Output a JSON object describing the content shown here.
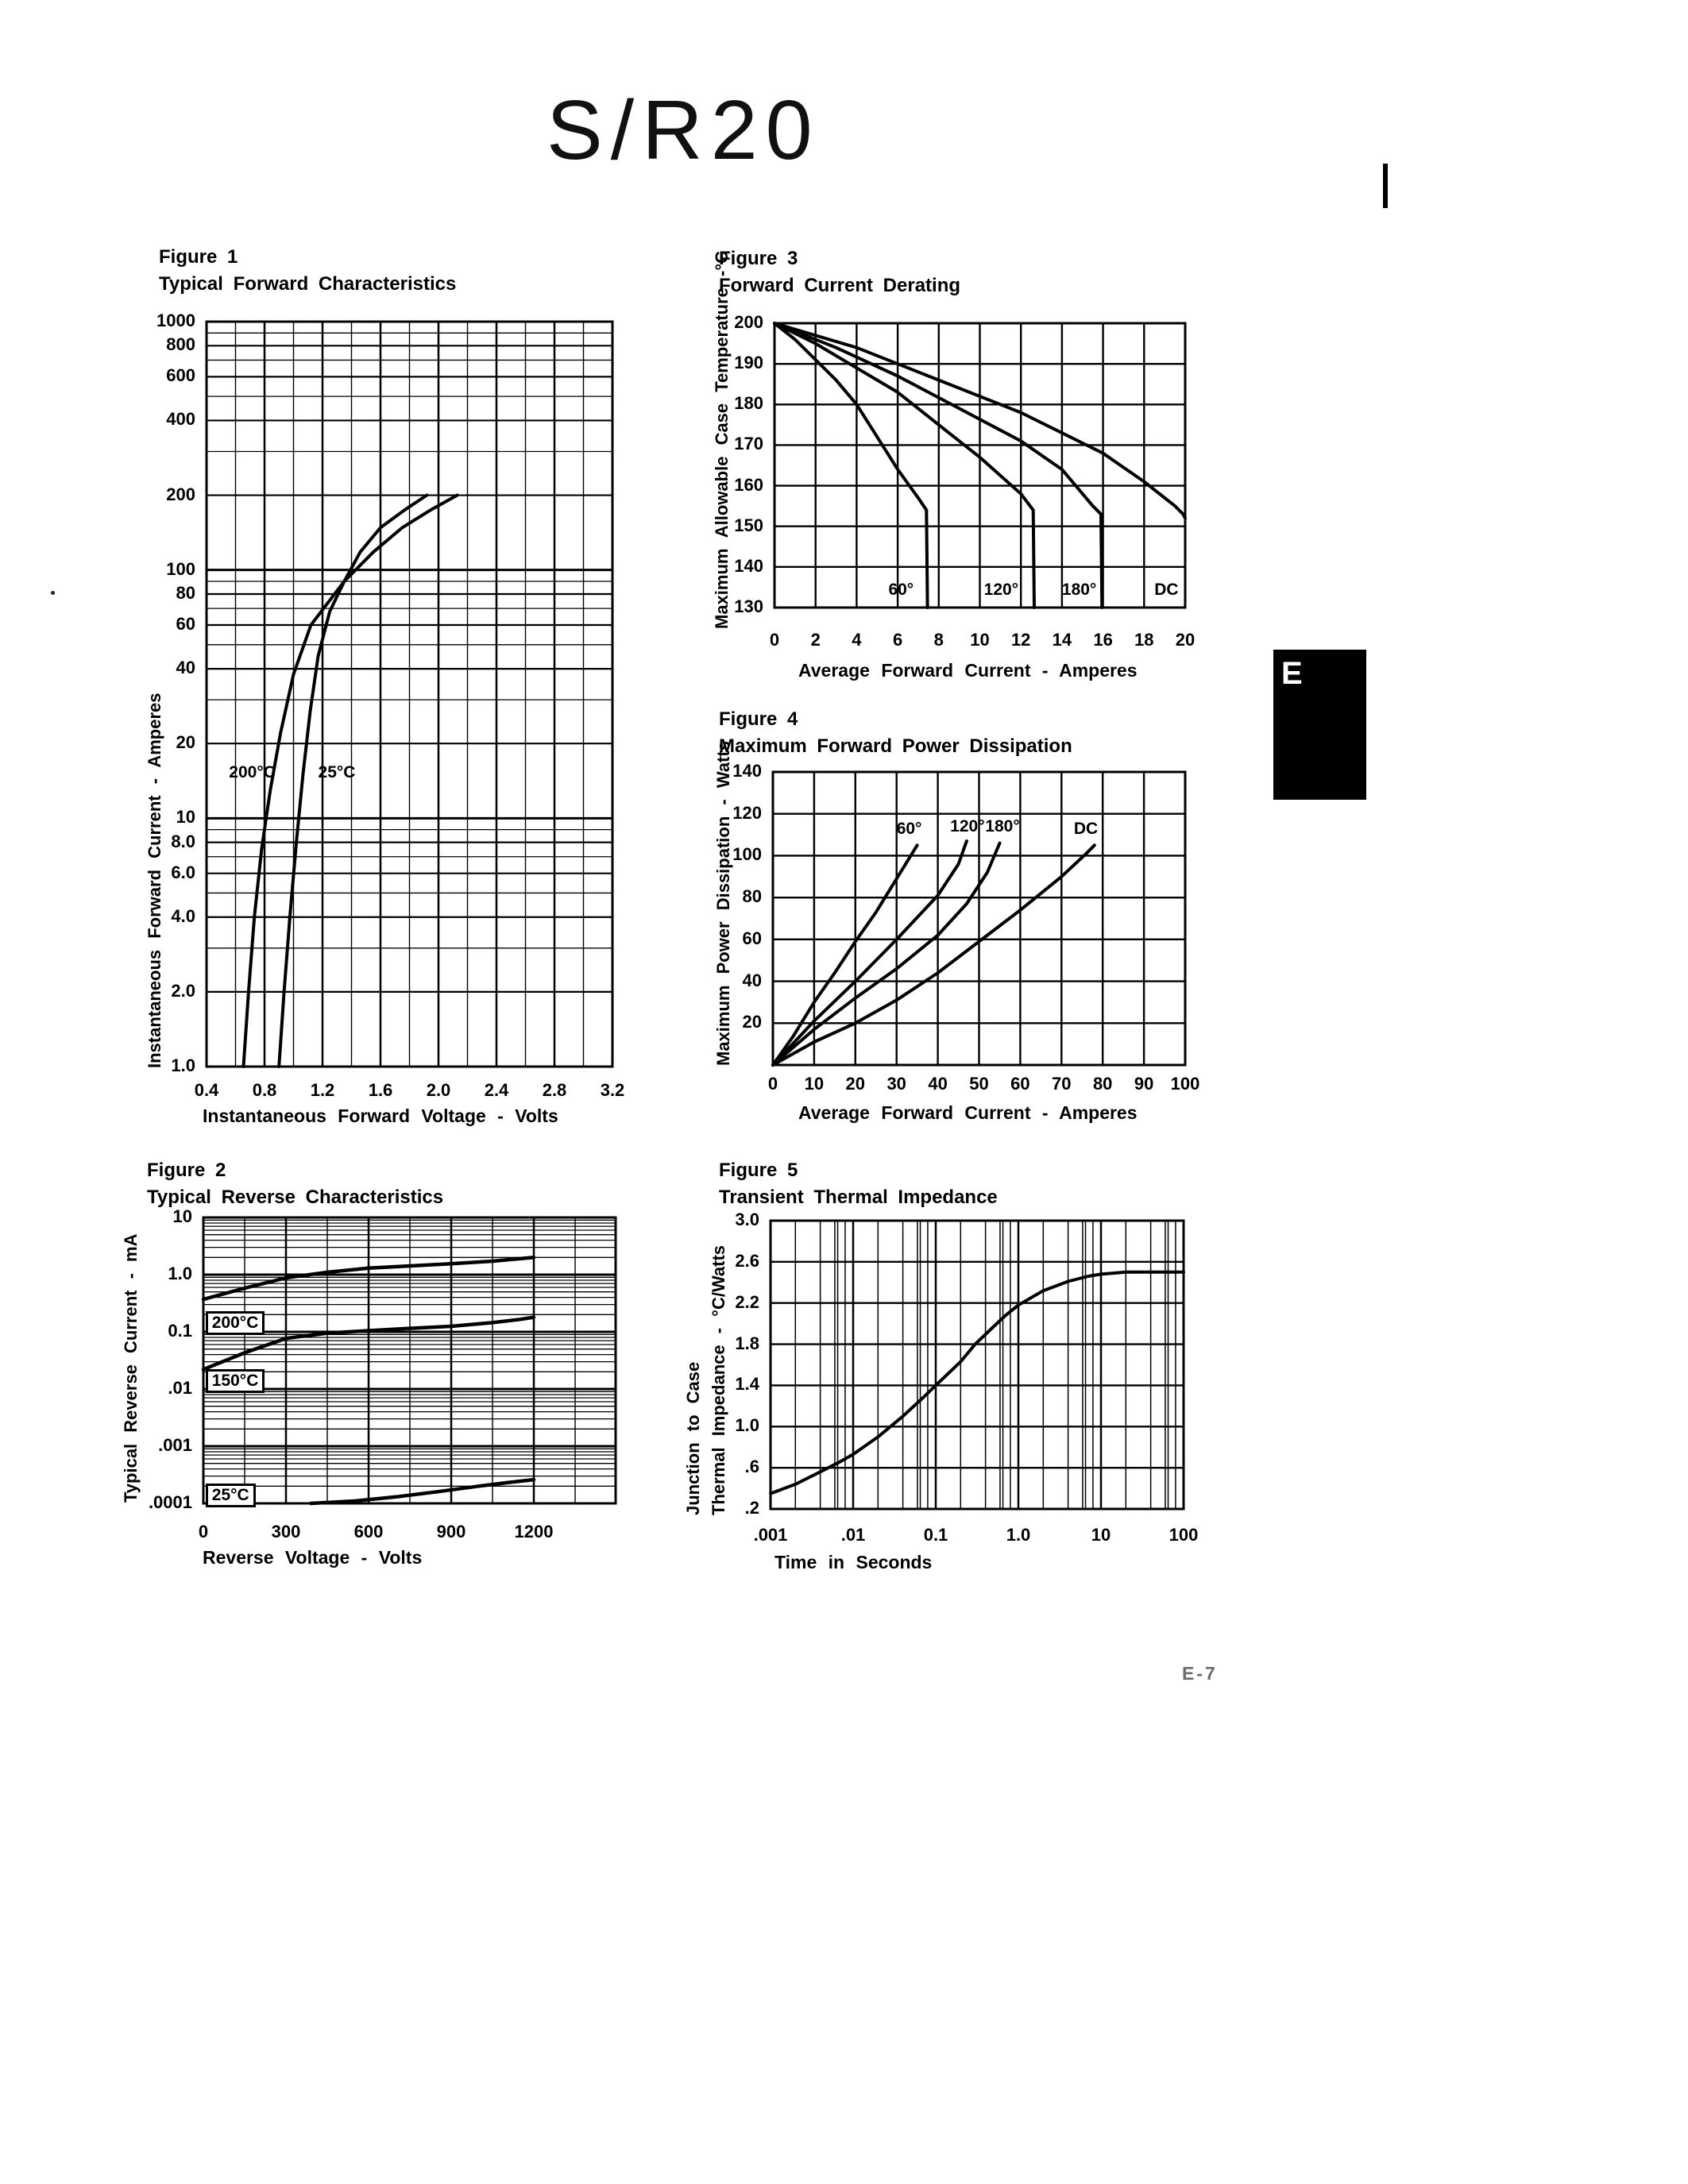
{
  "page": {
    "title": "S/R20",
    "section_tab": "E",
    "page_number": "E-7",
    "ink_color": "#000000",
    "background": "#ffffff"
  },
  "chart_data": [
    {
      "figure_label": "Figure 1",
      "title": "Typical Forward Characteristics",
      "type": "line",
      "xlabel": "Instantaneous Forward Voltage - Volts",
      "ylabel": "Instantaneous Forward Current - Amperes",
      "x_scale": "linear",
      "y_scale": "log",
      "xlim": [
        0.4,
        3.2
      ],
      "ylim": [
        1,
        1000
      ],
      "grid": "on",
      "x_ticks": {
        "values": [
          0.4,
          0.8,
          1.2,
          1.6,
          2.0,
          2.4,
          2.8,
          3.2
        ],
        "labels": [
          "0.4",
          "0.8",
          "1.2",
          "1.6",
          "2.0",
          "2.4",
          "2.8",
          "3.2"
        ]
      },
      "y_ticks": {
        "values": [
          1000,
          800,
          600,
          400,
          200,
          100,
          80,
          60,
          40,
          20,
          10,
          8,
          6,
          4,
          2,
          1
        ],
        "labels": [
          "1000",
          "800",
          "600",
          "400",
          "200",
          "100",
          "80",
          "60",
          "40",
          "20",
          "10",
          "8.0",
          "6.0",
          "4.0",
          "2.0",
          "1.0"
        ]
      },
      "series": [
        {
          "name": "200°C",
          "points": [
            [
              0.655,
              1
            ],
            [
              0.69,
              2
            ],
            [
              0.73,
              4
            ],
            [
              0.78,
              7.5
            ],
            [
              0.84,
              13
            ],
            [
              0.91,
              22
            ],
            [
              1.0,
              38
            ],
            [
              1.12,
              60
            ],
            [
              1.35,
              90
            ],
            [
              1.55,
              118
            ],
            [
              1.75,
              148
            ],
            [
              1.95,
              175
            ],
            [
              2.13,
              200
            ]
          ]
        },
        {
          "name": "25°C",
          "points": [
            [
              0.9,
              1
            ],
            [
              0.935,
              2
            ],
            [
              0.975,
              4
            ],
            [
              1.02,
              8
            ],
            [
              1.065,
              15
            ],
            [
              1.115,
              27
            ],
            [
              1.17,
              45
            ],
            [
              1.25,
              68
            ],
            [
              1.35,
              90
            ],
            [
              1.46,
              118
            ],
            [
              1.6,
              148
            ],
            [
              1.77,
              175
            ],
            [
              1.92,
              200
            ]
          ]
        }
      ],
      "annotations": [
        {
          "text": "200°C",
          "x": 0.555,
          "y": 15,
          "boxed": false
        },
        {
          "text": "25°C",
          "x": 1.17,
          "y": 15,
          "boxed": false
        }
      ]
    },
    {
      "figure_label": "Figure 2",
      "title": "Typical Reverse Characteristics",
      "type": "line",
      "xlabel": "Reverse Voltage - Volts",
      "ylabel": "Typical Reverse Current - mA",
      "x_scale": "linear",
      "y_scale": "log",
      "xlim": [
        0,
        1497
      ],
      "ylim": [
        0.0001,
        10
      ],
      "grid": "on",
      "x_ticks": {
        "values": [
          0,
          300,
          600,
          900,
          1200
        ],
        "labels": [
          "0",
          "300",
          "600",
          "900",
          "1200"
        ]
      },
      "y_ticks": {
        "values": [
          10,
          1,
          0.1,
          0.01,
          0.001,
          0.0001
        ],
        "labels": [
          "10",
          "1.0",
          "0.1",
          ".01",
          ".001",
          ".0001"
        ]
      },
      "series": [
        {
          "name": "200°C",
          "points": [
            [
              0,
              0.37
            ],
            [
              150,
              0.58
            ],
            [
              300,
              0.88
            ],
            [
              450,
              1.1
            ],
            [
              600,
              1.3
            ],
            [
              750,
              1.42
            ],
            [
              900,
              1.55
            ],
            [
              1050,
              1.72
            ],
            [
              1150,
              1.9
            ],
            [
              1200,
              2.0
            ]
          ]
        },
        {
          "name": "150°C",
          "points": [
            [
              0,
              0.022
            ],
            [
              150,
              0.043
            ],
            [
              300,
              0.077
            ],
            [
              450,
              0.095
            ],
            [
              600,
              0.105
            ],
            [
              750,
              0.115
            ],
            [
              900,
              0.125
            ],
            [
              1050,
              0.145
            ],
            [
              1150,
              0.165
            ],
            [
              1200,
              0.18
            ]
          ]
        },
        {
          "name": "25°C",
          "points": [
            [
              390,
              0.0001
            ],
            [
              550,
              0.00011
            ],
            [
              700,
              0.00013
            ],
            [
              850,
              0.00016
            ],
            [
              1000,
              0.0002
            ],
            [
              1100,
              0.00023
            ],
            [
              1200,
              0.00026
            ]
          ]
        }
      ],
      "annotations": [
        {
          "text": "200°C",
          "x": 8,
          "y": 0.145,
          "boxed": true
        },
        {
          "text": "150°C",
          "x": 8,
          "y": 0.0143,
          "boxed": true
        },
        {
          "text": "25°C",
          "x": 8,
          "y": 0.000143,
          "boxed": true
        }
      ]
    },
    {
      "figure_label": "Figure 3",
      "title": "Forward Current Derating",
      "type": "line",
      "xlabel": "Average Forward Current - Amperes",
      "ylabel": "Maximum Allowable Case Temperature -°C",
      "x_scale": "linear",
      "y_scale": "linear",
      "xlim": [
        0,
        20
      ],
      "ylim": [
        130,
        200
      ],
      "grid": "on",
      "x_ticks": {
        "values": [
          0,
          2,
          4,
          6,
          8,
          10,
          12,
          14,
          16,
          18,
          20
        ],
        "labels": [
          "0",
          "2",
          "4",
          "6",
          "8",
          "10",
          "12",
          "14",
          "16",
          "18",
          "20"
        ]
      },
      "y_ticks": {
        "values": [
          200,
          190,
          180,
          170,
          160,
          150,
          140,
          130
        ],
        "labels": [
          "200",
          "190",
          "180",
          "170",
          "160",
          "150",
          "140",
          "130"
        ]
      },
      "series": [
        {
          "name": "60°",
          "points": [
            [
              0,
              200
            ],
            [
              1,
              196
            ],
            [
              2,
              191
            ],
            [
              3,
              186
            ],
            [
              4,
              180
            ],
            [
              5,
              172
            ],
            [
              6,
              164
            ],
            [
              7,
              157
            ],
            [
              7.4,
              154
            ],
            [
              7.45,
              130
            ]
          ]
        },
        {
          "name": "120°",
          "points": [
            [
              0,
              200
            ],
            [
              2,
              195
            ],
            [
              4,
              189
            ],
            [
              6,
              183
            ],
            [
              8,
              175
            ],
            [
              10,
              167
            ],
            [
              12,
              158
            ],
            [
              12.6,
              154
            ],
            [
              12.65,
              130
            ]
          ]
        },
        {
          "name": "180°",
          "points": [
            [
              0,
              200
            ],
            [
              3,
              194
            ],
            [
              6,
              187
            ],
            [
              9,
              179
            ],
            [
              12,
              171
            ],
            [
              14,
              164
            ],
            [
              15.5,
              155
            ],
            [
              15.9,
              153
            ],
            [
              15.95,
              130
            ]
          ]
        },
        {
          "name": "DC",
          "points": [
            [
              0,
              200
            ],
            [
              4,
              194
            ],
            [
              8,
              186
            ],
            [
              12,
              178
            ],
            [
              16,
              168
            ],
            [
              18,
              161
            ],
            [
              19.5,
              155
            ],
            [
              19.9,
              153
            ],
            [
              20,
              152
            ]
          ]
        }
      ],
      "annotations": [
        {
          "text": "60°",
          "x": 5.55,
          "y": 134,
          "boxed": false
        },
        {
          "text": "120°",
          "x": 10.2,
          "y": 134,
          "boxed": false
        },
        {
          "text": "180°",
          "x": 14.0,
          "y": 134,
          "boxed": false
        },
        {
          "text": "DC",
          "x": 18.5,
          "y": 134,
          "boxed": false
        }
      ]
    },
    {
      "figure_label": "Figure 4",
      "title": "Maximum Forward Power Dissipation",
      "type": "line",
      "xlabel": "Average Forward Current - Amperes",
      "ylabel": "Maximum Power Dissipation - Watts",
      "x_scale": "linear",
      "y_scale": "linear",
      "xlim": [
        0,
        100
      ],
      "ylim": [
        0,
        140
      ],
      "grid": "on",
      "x_ticks": {
        "values": [
          0,
          10,
          20,
          30,
          40,
          50,
          60,
          70,
          80,
          90,
          100
        ],
        "labels": [
          "0",
          "10",
          "20",
          "30",
          "40",
          "50",
          "60",
          "70",
          "80",
          "90",
          "100"
        ]
      },
      "y_ticks": {
        "values": [
          140,
          120,
          100,
          80,
          60,
          40,
          20
        ],
        "labels": [
          "140",
          "120",
          "100",
          "80",
          "60",
          "40",
          "20"
        ]
      },
      "series": [
        {
          "name": "60°",
          "points": [
            [
              0,
              0
            ],
            [
              5,
              14
            ],
            [
              10,
              30
            ],
            [
              15,
              44
            ],
            [
              20,
              59
            ],
            [
              25,
              73
            ],
            [
              30,
              89
            ],
            [
              35,
              105
            ]
          ]
        },
        {
          "name": "120°",
          "points": [
            [
              0,
              0
            ],
            [
              10,
              21
            ],
            [
              20,
              40
            ],
            [
              30,
              60
            ],
            [
              40,
              81
            ],
            [
              45,
              96
            ],
            [
              47,
              107
            ]
          ]
        },
        {
          "name": "180°",
          "points": [
            [
              0,
              0
            ],
            [
              10,
              17
            ],
            [
              20,
              32
            ],
            [
              30,
              46
            ],
            [
              40,
              62
            ],
            [
              47,
              77
            ],
            [
              52,
              92
            ],
            [
              55,
              106
            ]
          ]
        },
        {
          "name": "DC",
          "points": [
            [
              0,
              0
            ],
            [
              10,
              11
            ],
            [
              20,
              20
            ],
            [
              30,
              31
            ],
            [
              40,
              44
            ],
            [
              50,
              59
            ],
            [
              60,
              74
            ],
            [
              70,
              90
            ],
            [
              76,
              101
            ],
            [
              78,
              105
            ]
          ]
        }
      ],
      "annotations": [
        {
          "text": "60°",
          "x": 30,
          "y": 112,
          "boxed": false
        },
        {
          "text": "120°",
          "x": 43,
          "y": 113,
          "boxed": false
        },
        {
          "text": "180°",
          "x": 51.5,
          "y": 113,
          "boxed": false
        },
        {
          "text": "DC",
          "x": 73,
          "y": 112,
          "boxed": false
        }
      ]
    },
    {
      "figure_label": "Figure 5",
      "title": "Transient Thermal Impedance",
      "type": "line",
      "xlabel": "Time in Seconds",
      "ylabel_line1": "Junction to Case",
      "ylabel_line2": "Thermal Impedance - °C/Watts",
      "x_scale": "log",
      "y_scale": "linear",
      "xlim": [
        0.001,
        100
      ],
      "ylim": [
        0.2,
        3.0
      ],
      "grid": "on",
      "x_ticks": {
        "values": [
          0.001,
          0.01,
          0.1,
          1,
          10,
          100
        ],
        "labels": [
          ".001",
          ".01",
          "0.1",
          "1.0",
          "10",
          "100"
        ]
      },
      "y_ticks": {
        "values": [
          3.0,
          2.6,
          2.2,
          1.8,
          1.4,
          1.0,
          0.6,
          0.2
        ],
        "labels": [
          "3.0",
          "2.6",
          "2.2",
          "1.8",
          "1.4",
          "1.0",
          ".6",
          ".2"
        ]
      },
      "series": [
        {
          "name": "Zth",
          "points": [
            [
              0.001,
              0.35
            ],
            [
              0.002,
              0.44
            ],
            [
              0.004,
              0.56
            ],
            [
              0.007,
              0.66
            ],
            [
              0.01,
              0.73
            ],
            [
              0.02,
              0.9
            ],
            [
              0.04,
              1.1
            ],
            [
              0.07,
              1.28
            ],
            [
              0.1,
              1.4
            ],
            [
              0.2,
              1.63
            ],
            [
              0.3,
              1.8
            ],
            [
              0.5,
              1.97
            ],
            [
              0.7,
              2.08
            ],
            [
              1,
              2.18
            ],
            [
              2,
              2.32
            ],
            [
              4,
              2.41
            ],
            [
              7,
              2.46
            ],
            [
              10,
              2.48
            ],
            [
              20,
              2.5
            ],
            [
              100,
              2.5
            ]
          ]
        }
      ],
      "annotations": []
    }
  ]
}
